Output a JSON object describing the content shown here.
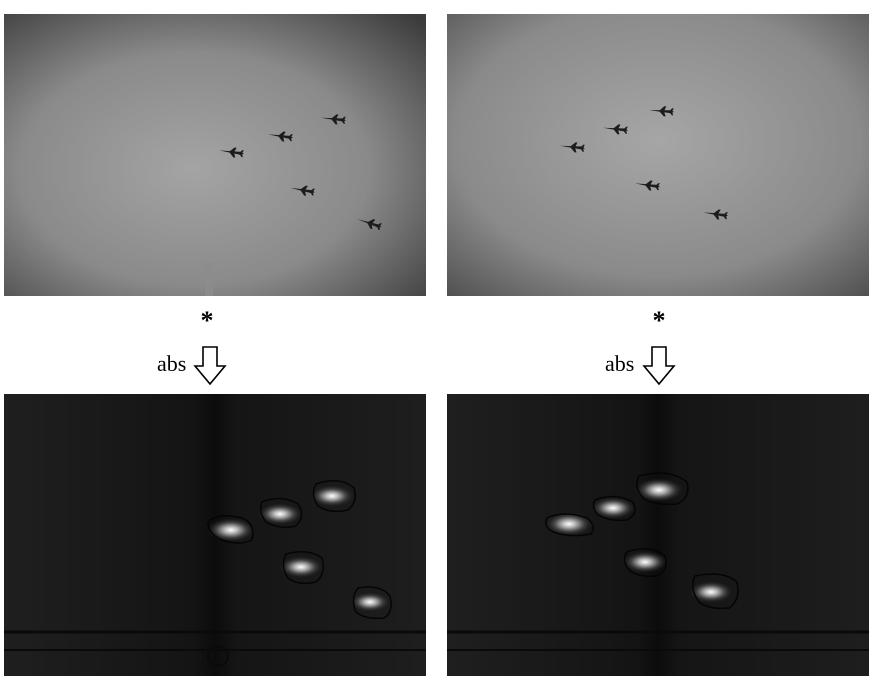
{
  "operator_symbol": "*",
  "abs_label": "abs",
  "panels": {
    "top_left": "input-grayscale-photo",
    "top_right": "input-grayscale-photo",
    "bottom_left": "filter-response-map",
    "bottom_right": "filter-response-map"
  },
  "colors": {
    "sky_light": "#a8a8a8",
    "sky_dark": "#3a3a3a",
    "response_bg": "#161616",
    "response_glow": "#ffffff",
    "aircraft": "#1a1a1a"
  }
}
